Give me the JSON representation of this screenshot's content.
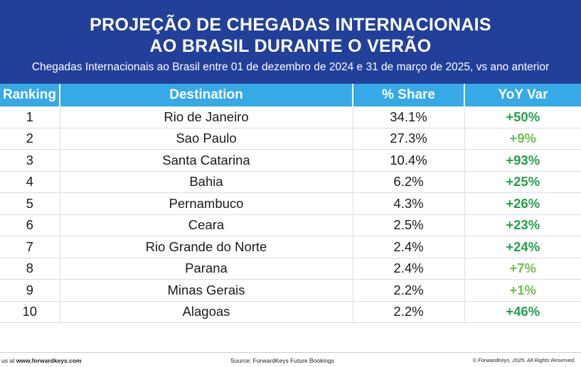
{
  "header": {
    "title_line1": "PROJEÇÃO DE CHEGADAS INTERNACIONAIS",
    "title_line2": "AO BRASIL DURANTE O VERÃO",
    "subtitle": "Chegadas Internacionais ao Brasil entre 01 de dezembro de 2024 e 31 de março de 2025, vs ano anterior"
  },
  "chart_data": {
    "type": "table",
    "title": "PROJEÇÃO DE CHEGADAS INTERNACIONAIS AO BRASIL DURANTE O VERÃO",
    "columns": [
      "Ranking",
      "Destination",
      "% Share",
      "YoY Var"
    ],
    "rows": [
      {
        "rank": "1",
        "destination": "Rio de Janeiro",
        "share": "34.1%",
        "yoy": "+50%"
      },
      {
        "rank": "2",
        "destination": "Sao Paulo",
        "share": "27.3%",
        "yoy": "+9%"
      },
      {
        "rank": "3",
        "destination": "Santa Catarina",
        "share": "10.4%",
        "yoy": "+93%"
      },
      {
        "rank": "4",
        "destination": "Bahia",
        "share": "6.2%",
        "yoy": "+25%"
      },
      {
        "rank": "5",
        "destination": "Pernambuco",
        "share": "4.3%",
        "yoy": "+26%"
      },
      {
        "rank": "6",
        "destination": "Ceara",
        "share": "2.5%",
        "yoy": "+23%"
      },
      {
        "rank": "7",
        "destination": "Rio Grande do Norte",
        "share": "2.4%",
        "yoy": "+24%"
      },
      {
        "rank": "8",
        "destination": "Parana",
        "share": "2.4%",
        "yoy": "+7%"
      },
      {
        "rank": "9",
        "destination": "Minas Gerais",
        "share": "2.2%",
        "yoy": "+1%"
      },
      {
        "rank": "10",
        "destination": "Alagoas",
        "share": "2.2%",
        "yoy": "+46%"
      }
    ]
  },
  "footer": {
    "left_prefix": "us at",
    "left_url": "www.forwardkeys.com",
    "source": "Source: ForwardKeys Future Bookings",
    "copyright": "© ForwardKeys, 2025. All Rights Reserved."
  },
  "colors": {
    "header_bg": "#22409a",
    "table_header_bg": "#36a9e7",
    "yoy_strong": "#22a04a",
    "yoy_light": "#6cc04a"
  }
}
